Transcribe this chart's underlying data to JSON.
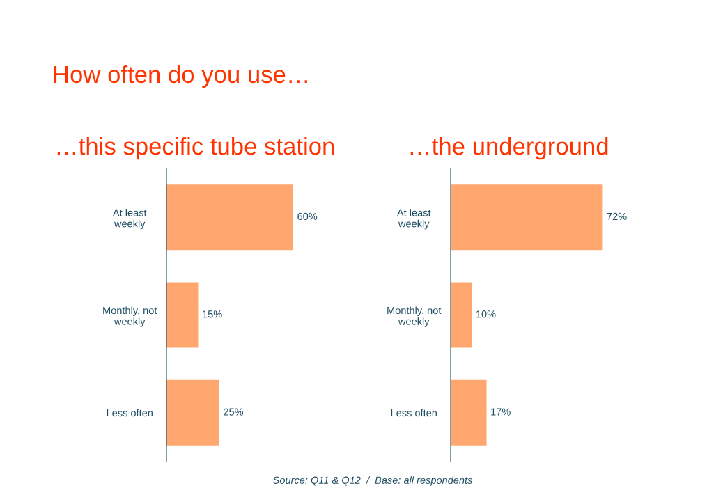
{
  "chart_data": [
    {
      "type": "bar",
      "orientation": "horizontal",
      "title": "…this specific tube station",
      "categories": [
        "At least\nweekly",
        "Monthly, not\nweekly",
        "Less often"
      ],
      "values": [
        60,
        15,
        25
      ],
      "value_labels": [
        "60%",
        "15%",
        "25%"
      ],
      "color": "#ffa76f",
      "grid": false,
      "legend": false,
      "annotations": [
        "How often do you use…",
        "Source: Q11 & Q12  /  Base: all respondents"
      ]
    },
    {
      "type": "bar",
      "orientation": "horizontal",
      "title": "…the underground",
      "categories": [
        "At least\nweekly",
        "Monthly, not\nweekly",
        "Less often"
      ],
      "values": [
        72,
        10,
        17
      ],
      "value_labels": [
        "72%",
        "10%",
        "17%"
      ],
      "color": "#ffa76f",
      "grid": false,
      "legend": false
    }
  ]
}
